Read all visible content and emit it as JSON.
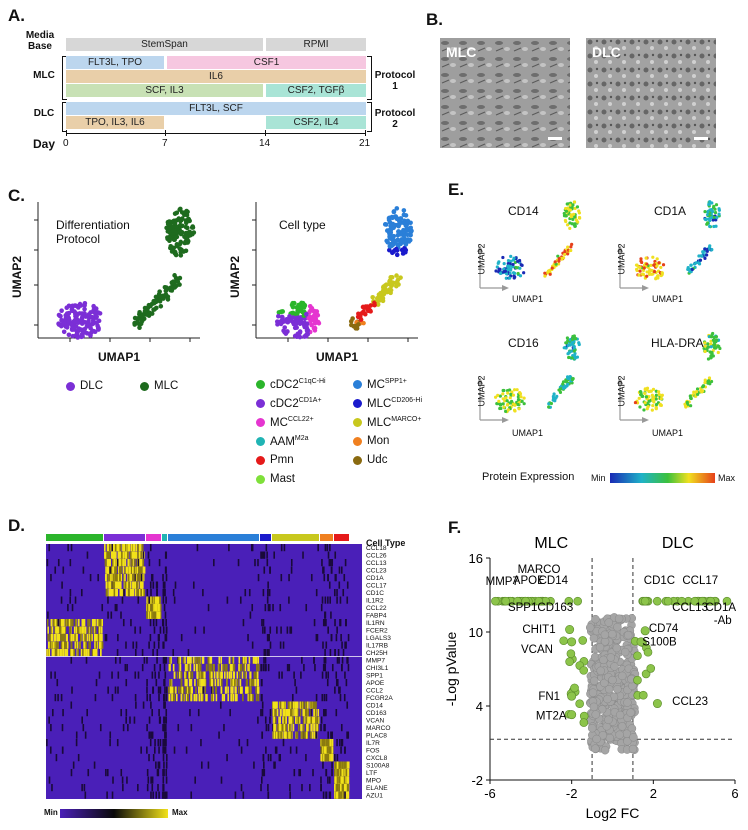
{
  "panels": {
    "a": "A.",
    "b": "B.",
    "c": "C.",
    "d": "D.",
    "e": "E.",
    "f": "F."
  },
  "timeline": {
    "media_base_label": "Media Base",
    "mlc_label": "MLC",
    "dlc_label": "DLC",
    "day_label": "Day",
    "media": [
      "StemSpan",
      "RPMI"
    ],
    "mlc_bars": [
      "FLT3L, TPO",
      "CSF1",
      "IL6",
      "SCF, IL3",
      "CSF2, TGFβ"
    ],
    "dlc_bars": [
      "FLT3L, SCF",
      "TPO, IL3, IL6",
      "CSF2, IL4"
    ],
    "protocol1": "Protocol 1",
    "protocol2": "Protocol 2",
    "days": [
      "0",
      "7",
      "14",
      "21"
    ]
  },
  "micrographs": [
    "MLC",
    "DLC"
  ],
  "umap": {
    "left_title": "Differentiation Protocol",
    "right_title": "Cell type",
    "xlabel": "UMAP1",
    "ylabel": "UMAP2",
    "protocol_legend": [
      {
        "label": "DLC",
        "color": "#7b2fd6"
      },
      {
        "label": "MLC",
        "color": "#1e6b1e"
      }
    ],
    "celltype_legend": [
      {
        "label": "cDC2",
        "sup": "C1qC-Hi",
        "color": "#2bb52b"
      },
      {
        "label": "MC",
        "sup": "SPP1+",
        "color": "#2a7fd8"
      },
      {
        "label": "cDC2",
        "sup": "CD1A+",
        "color": "#7b2fd6"
      },
      {
        "label": "MLC",
        "sup": "CD206-Hi",
        "color": "#1a1acc"
      },
      {
        "label": "MC",
        "sup": "CCL22+",
        "color": "#e535d0"
      },
      {
        "label": "MLC",
        "sup": "MARCO+",
        "color": "#c8c81e"
      },
      {
        "label": "AAM",
        "sup": "M2a",
        "color": "#20b4b4"
      },
      {
        "label": "Mon",
        "sup": "",
        "color": "#f08020"
      },
      {
        "label": "Pmn",
        "sup": "",
        "color": "#e51a1a"
      },
      {
        "label": "Udc",
        "sup": "",
        "color": "#8a6a10"
      },
      {
        "label": "Mast",
        "sup": "",
        "color": "#7fe03a"
      }
    ]
  },
  "protein": {
    "markers": [
      "CD14",
      "CD1A",
      "CD16",
      "HLA-DRA"
    ],
    "xlabel": "UMAP1",
    "ylabel": "UMAP2",
    "legend_title": "Protein Expression",
    "min": "Min",
    "max": "Max"
  },
  "heatmap": {
    "cell_type_label": "Cell Type",
    "genes": [
      "CCL18",
      "CCL26",
      "CCL13",
      "CCL23",
      "CD1A",
      "CCL17",
      "CD1C",
      "IL1R2",
      "CCL22",
      "FABP4",
      "IL1RN",
      "FCER2",
      "LGALS3",
      "IL17RB",
      "CH25H",
      "MMP7",
      "CHI3L1",
      "SPP1",
      "APOE",
      "CCL2",
      "FCGR2A",
      "CD14",
      "CD163",
      "VCAN",
      "MARCO",
      "PLAC8",
      "IL7R",
      "FOS",
      "CXCL8",
      "S100A8",
      "LTF",
      "MPO",
      "ELANE",
      "AZU1"
    ],
    "min": "Min",
    "max": "Max",
    "group_colors": [
      "#2bb52b",
      "#7b2fd6",
      "#e535d0",
      "#20b4b4",
      "#2a7fd8",
      "#1a1acc",
      "#c8c81e",
      "#f08020",
      "#e51a1a"
    ]
  },
  "chart_data": {
    "type": "scatter",
    "title": "",
    "xlabel": "Log2 FC",
    "ylabel": "-Log pValue",
    "xlim": [
      -6,
      6
    ],
    "ylim": [
      -2,
      16
    ],
    "xticks": [
      -6,
      -2,
      2,
      6
    ],
    "yticks": [
      -2,
      4,
      10,
      16
    ],
    "region_labels": [
      "MLC",
      "DLC"
    ],
    "thresholds": {
      "x": [
        -1,
        1
      ],
      "y": 1.3
    },
    "labeled_points": [
      {
        "label": "MMP7",
        "x": -5.5,
        "y": 12.5
      },
      {
        "label": "MARCO",
        "x": -4.3,
        "y": 12.5
      },
      {
        "label": "APOE",
        "x": -3.6,
        "y": 12.5
      },
      {
        "label": "CD14",
        "x": -3.0,
        "y": 12.5
      },
      {
        "label": "SPP1",
        "x": -4.4,
        "y": 12.5
      },
      {
        "label": "CD163",
        "x": -2.3,
        "y": 12.5
      },
      {
        "label": "CHIT1",
        "x": -2.1,
        "y": 10.2
      },
      {
        "label": "VCAN",
        "x": -2.0,
        "y": 9.2
      },
      {
        "label": "FN1",
        "x": -2.0,
        "y": 4.8
      },
      {
        "label": "MT2A",
        "x": -2.0,
        "y": 3.3
      },
      {
        "label": "CD1C",
        "x": 2.0,
        "y": 12.5
      },
      {
        "label": "CCL17",
        "x": 4.0,
        "y": 12.5
      },
      {
        "label": "CCL13",
        "x": 4.0,
        "y": 12.5
      },
      {
        "label": "CD1A -Ab",
        "x": 5.5,
        "y": 12.5
      },
      {
        "label": "CD74",
        "x": 1.6,
        "y": 10.1
      },
      {
        "label": "S100B",
        "x": 1.4,
        "y": 9.2
      },
      {
        "label": "CCL23",
        "x": 2.2,
        "y": 4.2
      }
    ]
  }
}
